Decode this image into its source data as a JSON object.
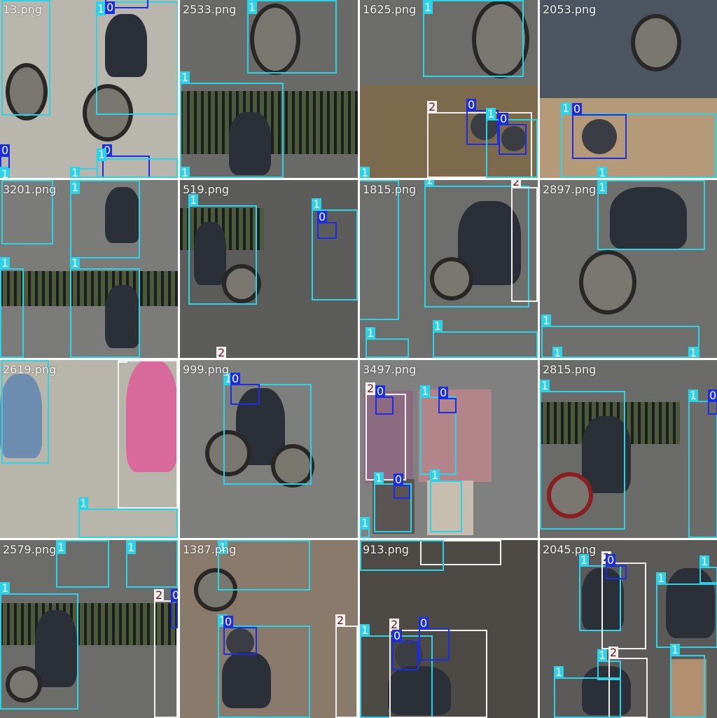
{
  "mosaic": {
    "background": "#ffffff",
    "class_colors": {
      "0": "#1a2ee6",
      "1": "#2ad3e8",
      "2": "#f0f0f0"
    },
    "tiles": [
      {
        "name": "tile-r0c0",
        "label": "13.png",
        "boxes": [
          {
            "cls": "1",
            "text": "1"
          },
          {
            "cls": "1",
            "text": "1"
          },
          {
            "cls": "0",
            "text": "0"
          },
          {
            "cls": "0",
            "text": "0"
          },
          {
            "cls": "1",
            "text": "1"
          },
          {
            "cls": "0",
            "text": "0"
          },
          {
            "cls": "1",
            "text": "1"
          },
          {
            "cls": "1",
            "text": "1"
          }
        ]
      },
      {
        "name": "tile-r0c1",
        "label": "2533.png",
        "boxes": [
          {
            "cls": "1",
            "text": "1"
          },
          {
            "cls": "1",
            "text": "1"
          },
          {
            "cls": "1",
            "text": "1"
          }
        ]
      },
      {
        "name": "tile-r0c2",
        "label": "1625.png",
        "boxes": [
          {
            "cls": "1",
            "text": "1"
          },
          {
            "cls": "2",
            "text": "2"
          },
          {
            "cls": "0",
            "text": "0"
          },
          {
            "cls": "1",
            "text": "1"
          },
          {
            "cls": "0",
            "text": "0"
          },
          {
            "cls": "1",
            "text": "1"
          }
        ]
      },
      {
        "name": "tile-r0c3",
        "label": "2053.png",
        "boxes": [
          {
            "cls": "1",
            "text": "1"
          },
          {
            "cls": "0",
            "text": "0"
          },
          {
            "cls": "1",
            "text": "1"
          }
        ]
      },
      {
        "name": "tile-r1c0",
        "label": "3201.png",
        "boxes": [
          {
            "cls": "1",
            "text": "1"
          },
          {
            "cls": "1",
            "text": "1"
          },
          {
            "cls": "1",
            "text": "1"
          },
          {
            "cls": "1",
            "text": "1"
          }
        ]
      },
      {
        "name": "tile-r1c1",
        "label": "519.png",
        "boxes": [
          {
            "cls": "1",
            "text": "1"
          },
          {
            "cls": "1",
            "text": "1"
          },
          {
            "cls": "0",
            "text": "0"
          },
          {
            "cls": "2",
            "text": "2"
          }
        ]
      },
      {
        "name": "tile-r1c2",
        "label": "1815.png",
        "boxes": [
          {
            "cls": "1",
            "text": "1"
          },
          {
            "cls": "1",
            "text": "1"
          },
          {
            "cls": "2",
            "text": "2"
          },
          {
            "cls": "1",
            "text": "1"
          },
          {
            "cls": "1",
            "text": "1"
          }
        ]
      },
      {
        "name": "tile-r1c3",
        "label": "2897.png",
        "boxes": [
          {
            "cls": "1",
            "text": "1"
          },
          {
            "cls": "1",
            "text": "1"
          },
          {
            "cls": "1",
            "text": "1"
          },
          {
            "cls": "1",
            "text": "1"
          }
        ]
      },
      {
        "name": "tile-r2c0",
        "label": "2619.png",
        "boxes": [
          {
            "cls": "1",
            "text": "1"
          },
          {
            "cls": "2",
            "text": "2"
          },
          {
            "cls": "1",
            "text": "1"
          }
        ]
      },
      {
        "name": "tile-r2c1",
        "label": "999.png",
        "boxes": [
          {
            "cls": "1",
            "text": "1"
          },
          {
            "cls": "0",
            "text": "0"
          }
        ]
      },
      {
        "name": "tile-r2c2",
        "label": "3497.png",
        "boxes": [
          {
            "cls": "2",
            "text": "2"
          },
          {
            "cls": "0",
            "text": "0"
          },
          {
            "cls": "1",
            "text": "1"
          },
          {
            "cls": "0",
            "text": "0"
          },
          {
            "cls": "1",
            "text": "1"
          },
          {
            "cls": "0",
            "text": "0"
          },
          {
            "cls": "1",
            "text": "1"
          },
          {
            "cls": "1",
            "text": "1"
          }
        ]
      },
      {
        "name": "tile-r2c3",
        "label": "2815.png",
        "boxes": [
          {
            "cls": "1",
            "text": "1"
          },
          {
            "cls": "1",
            "text": "1"
          },
          {
            "cls": "0",
            "text": "0"
          }
        ]
      },
      {
        "name": "tile-r3c0",
        "label": "2579.png",
        "boxes": [
          {
            "cls": "1",
            "text": "1"
          },
          {
            "cls": "1",
            "text": "1"
          },
          {
            "cls": "1",
            "text": "1"
          },
          {
            "cls": "2",
            "text": "2"
          },
          {
            "cls": "0",
            "text": "0"
          }
        ]
      },
      {
        "name": "tile-r3c1",
        "label": "1387.png",
        "boxes": [
          {
            "cls": "1",
            "text": "1"
          },
          {
            "cls": "1",
            "text": "1"
          },
          {
            "cls": "0",
            "text": "0"
          },
          {
            "cls": "2",
            "text": "2"
          }
        ]
      },
      {
        "name": "tile-r3c2",
        "label": "913.png",
        "boxes": [
          {
            "cls": "2",
            "text": "2"
          },
          {
            "cls": "1",
            "text": "1"
          },
          {
            "cls": "2",
            "text": "2"
          },
          {
            "cls": "0",
            "text": "0"
          },
          {
            "cls": "0",
            "text": "0"
          }
        ]
      },
      {
        "name": "tile-r3c3",
        "label": "2045.png",
        "boxes": [
          {
            "cls": "1",
            "text": "1"
          },
          {
            "cls": "2",
            "text": "2"
          },
          {
            "cls": "0",
            "text": "0"
          },
          {
            "cls": "1",
            "text": "1"
          },
          {
            "cls": "1",
            "text": "1"
          },
          {
            "cls": "1",
            "text": "1"
          },
          {
            "cls": "2",
            "text": "2"
          },
          {
            "cls": "1",
            "text": "1"
          },
          {
            "cls": "1",
            "text": "1"
          }
        ]
      }
    ]
  }
}
